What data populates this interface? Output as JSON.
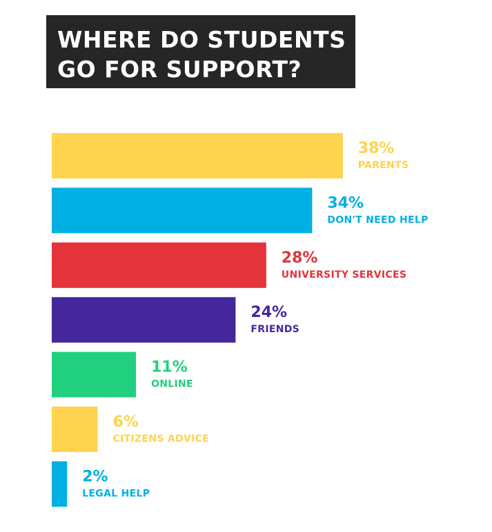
{
  "title": {
    "line1": "WHERE DO STUDENTS",
    "line2": "GO FOR SUPPORT?"
  },
  "chart_data": {
    "type": "bar",
    "orientation": "horizontal",
    "categories": [
      "PARENTS",
      "DON'T NEED HELP",
      "UNIVERSITY SERVICES",
      "FRIENDS",
      "ONLINE",
      "CITIZENS ADVICE",
      "LEGAL HELP"
    ],
    "values": [
      38,
      34,
      28,
      24,
      11,
      6,
      2
    ],
    "value_labels": [
      "38%",
      "34%",
      "28%",
      "24%",
      "11%",
      "6%",
      "2%"
    ],
    "colors": [
      "#fed44e",
      "#00b0e2",
      "#e2343a",
      "#44279d",
      "#21d07e",
      "#fed44e",
      "#00b0e2"
    ],
    "unit": "%",
    "grid": false,
    "legend": "none"
  }
}
